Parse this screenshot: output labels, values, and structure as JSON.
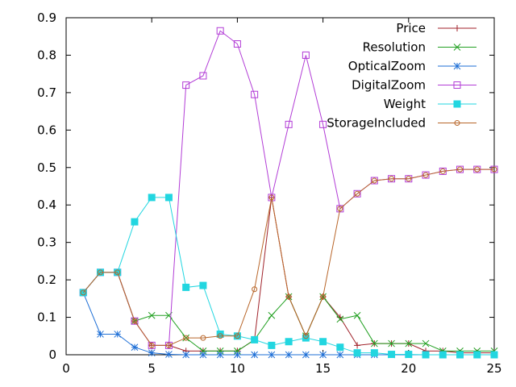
{
  "chart_data": {
    "type": "line",
    "xlim": [
      0,
      25
    ],
    "ylim": [
      0,
      0.9
    ],
    "x_ticks": [
      0,
      5,
      10,
      15,
      20,
      25
    ],
    "y_ticks": [
      0,
      0.1,
      0.2,
      0.3,
      0.4,
      0.5,
      0.6,
      0.7,
      0.8,
      0.9
    ],
    "x_tick_labels": [
      "0",
      "5",
      "10",
      "15",
      "20",
      "25"
    ],
    "y_tick_labels": [
      "0",
      "0.1",
      "0.2",
      "0.3",
      "0.4",
      "0.5",
      "0.6",
      "0.7",
      "0.8",
      "0.9"
    ],
    "grid": false,
    "legend_position": "top-right",
    "x": [
      1,
      2,
      3,
      4,
      5,
      6,
      7,
      8,
      9,
      10,
      11,
      12,
      13,
      14,
      15,
      16,
      17,
      18,
      19,
      20,
      21,
      22,
      23,
      24,
      25
    ],
    "series": [
      {
        "name": "Price",
        "color": "#a0222a",
        "marker": "plus",
        "values": [
          0.166,
          0.22,
          0.22,
          0.09,
          0.025,
          0.025,
          0.01,
          0.01,
          0.01,
          0.01,
          0.04,
          0.42,
          0.155,
          0.05,
          0.155,
          0.1,
          0.025,
          0.03,
          0.03,
          0.03,
          0.01,
          0.01,
          0.005,
          0.005,
          0.005
        ]
      },
      {
        "name": "Resolution",
        "color": "#22a022",
        "marker": "cross",
        "values": [
          0.166,
          0.22,
          0.22,
          0.09,
          0.105,
          0.105,
          0.045,
          0.01,
          0.01,
          0.01,
          0.04,
          0.105,
          0.155,
          0.05,
          0.155,
          0.095,
          0.105,
          0.03,
          0.03,
          0.03,
          0.03,
          0.01,
          0.01,
          0.01,
          0.01
        ]
      },
      {
        "name": "OpticalZoom",
        "color": "#1e6fd6",
        "marker": "star",
        "values": [
          0.166,
          0.055,
          0.055,
          0.02,
          0.005,
          0.001,
          0,
          0,
          0,
          0,
          0,
          0,
          0,
          0,
          0,
          0,
          0,
          0,
          0,
          0,
          0,
          0,
          0,
          0,
          0
        ]
      },
      {
        "name": "DigitalZoom",
        "color": "#b23cd6",
        "marker": "square-open",
        "values": [
          0.166,
          0.22,
          0.22,
          0.09,
          0.025,
          0.025,
          0.72,
          0.745,
          0.865,
          0.83,
          0.695,
          0.42,
          0.615,
          0.8,
          0.615,
          0.39,
          0.43,
          0.465,
          0.47,
          0.47,
          0.48,
          0.49,
          0.495,
          0.495,
          0.495
        ]
      },
      {
        "name": "Weight",
        "color": "#22d6e0",
        "marker": "square-filled",
        "values": [
          0.166,
          0.22,
          0.22,
          0.355,
          0.42,
          0.42,
          0.18,
          0.185,
          0.055,
          0.05,
          0.04,
          0.025,
          0.035,
          0.045,
          0.035,
          0.02,
          0.005,
          0.005,
          0.001,
          0.001,
          0,
          0,
          0,
          0,
          0
        ]
      },
      {
        "name": "StorageIncluded",
        "color": "#b8662a",
        "marker": "circle",
        "values": [
          0.166,
          0.22,
          0.22,
          0.09,
          0.025,
          0.025,
          0.045,
          0.045,
          0.05,
          0.05,
          0.175,
          0.42,
          0.155,
          0.05,
          0.155,
          0.39,
          0.43,
          0.465,
          0.47,
          0.47,
          0.48,
          0.49,
          0.495,
          0.495,
          0.495
        ]
      }
    ]
  }
}
